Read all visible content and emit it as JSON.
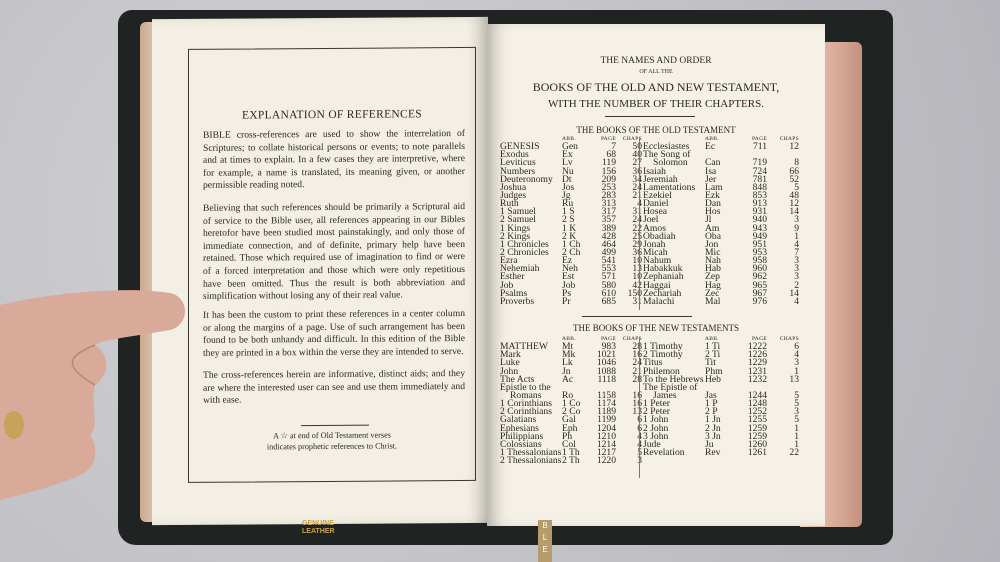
{
  "left_page": {
    "title": "EXPLANATION OF REFERENCES",
    "paragraphs": [
      "BIBLE cross-references are used to show the interrelation of Scriptures; to collate historical persons or events; to note parallels and at times to explain. In a few cases they are interpretive, where for example, a name is translated, its meaning given, or another permissible reading noted.",
      "Believing that such references should be primarily a Scriptural aid of service to the Bible user, all references appearing in our Bibles heretofor have been studied most painstakingly, and only those of immediate connection, and of definite, primary help have been retained. Those which required use of imagination to find or were of a forced interpretation and those which were only repetitious have been omitted. Thus the result is both abbreviation and simplification without losing any of their real value.",
      "It has been the custom to print these references in a center column or along the margins of a page. Use of such arrangement has been found to be both unhandy and difficult. In this edition of the Bible they are printed in a box within the verse they are intended to serve.",
      "The cross-references herein are informative, distinct aids; and they are where the interested user can see and use them immediately and with ease."
    ],
    "footnote": [
      "A ☆ at end of Old Testament verses",
      "indicates prophetic references to Christ."
    ]
  },
  "right_page": {
    "title_line1": "THE NAMES AND ORDER",
    "title_line2": "OF ALL THE",
    "title_line3": "BOOKS OF THE OLD AND NEW TESTAMENT,",
    "title_line4": "WITH THE NUMBER OF THEIR CHAPTERS.",
    "headers": {
      "abb": "ABB.",
      "page": "PAGE",
      "chaps": "CHAPS"
    },
    "old_testament": {
      "heading": "THE BOOKS OF THE OLD TESTAMENT",
      "left": [
        [
          "GENESIS",
          "Gen",
          "7",
          "50"
        ],
        [
          "Exodus",
          "Ex",
          "68",
          "40"
        ],
        [
          "Leviticus",
          "Lv",
          "119",
          "27"
        ],
        [
          "Numbers",
          "Nu",
          "156",
          "36"
        ],
        [
          "Deuteronomy",
          "Dt",
          "209",
          "34"
        ],
        [
          "Joshua",
          "Jos",
          "253",
          "24"
        ],
        [
          "Judges",
          "Jg",
          "283",
          "21"
        ],
        [
          "Ruth",
          "Ru",
          "313",
          "4"
        ],
        [
          "1 Samuel",
          "1 S",
          "317",
          "31"
        ],
        [
          "2 Samuel",
          "2 S",
          "357",
          "24"
        ],
        [
          "1 Kings",
          "1 K",
          "389",
          "22"
        ],
        [
          "2 Kings",
          "2 K",
          "428",
          "25"
        ],
        [
          "1 Chronicles",
          "1 Ch",
          "464",
          "29"
        ],
        [
          "2 Chronicles",
          "2 Ch",
          "499",
          "36"
        ],
        [
          "Ezra",
          "Ez",
          "541",
          "10"
        ],
        [
          "Nehemiah",
          "Neh",
          "553",
          "13"
        ],
        [
          "Esther",
          "Est",
          "571",
          "10"
        ],
        [
          "Job",
          "Job",
          "580",
          "42"
        ],
        [
          "Psalms",
          "Ps",
          "610",
          "150"
        ],
        [
          "Proverbs",
          "Pr",
          "685",
          "31"
        ]
      ],
      "right": [
        [
          "Ecclesiastes",
          "Ec",
          "711",
          "12"
        ],
        [
          "The Song of",
          "",
          "",
          ""
        ],
        [
          "Solomon",
          "Can",
          "719",
          "8"
        ],
        [
          "Isaiah",
          "Isa",
          "724",
          "66"
        ],
        [
          "Jeremiah",
          "Jer",
          "781",
          "52"
        ],
        [
          "Lamentations",
          "Lam",
          "848",
          "5"
        ],
        [
          "Ezekiel",
          "Ezk",
          "853",
          "48"
        ],
        [
          "Daniel",
          "Dan",
          "913",
          "12"
        ],
        [
          "Hosea",
          "Hos",
          "931",
          "14"
        ],
        [
          "Joel",
          "Jl",
          "940",
          "3"
        ],
        [
          "Amos",
          "Am",
          "943",
          "9"
        ],
        [
          "Obadiah",
          "Oba",
          "949",
          "1"
        ],
        [
          "Jonah",
          "Jon",
          "951",
          "4"
        ],
        [
          "Micah",
          "Mic",
          "953",
          "7"
        ],
        [
          "Nahum",
          "Nah",
          "958",
          "3"
        ],
        [
          "Habakkuk",
          "Hab",
          "960",
          "3"
        ],
        [
          "Zephaniah",
          "Zep",
          "962",
          "3"
        ],
        [
          "Haggai",
          "Hag",
          "965",
          "2"
        ],
        [
          "Zechariah",
          "Zec",
          "967",
          "14"
        ],
        [
          "Malachi",
          "Mal",
          "976",
          "4"
        ]
      ]
    },
    "new_testament": {
      "heading": "THE BOOKS OF THE NEW TESTAMENTS",
      "left": [
        [
          "MATTHEW",
          "Mt",
          "983",
          "28"
        ],
        [
          "Mark",
          "Mk",
          "1021",
          "16"
        ],
        [
          "Luke",
          "Lk",
          "1046",
          "24"
        ],
        [
          "John",
          "Jn",
          "1088",
          "21"
        ],
        [
          "The Acts",
          "Ac",
          "1118",
          "28"
        ],
        [
          "Epistle to the",
          "",
          "",
          ""
        ],
        [
          "Romans",
          "Ro",
          "1158",
          "16"
        ],
        [
          "1 Corinthians",
          "1 Co",
          "1174",
          "16"
        ],
        [
          "2 Corinthians",
          "2 Co",
          "1189",
          "13"
        ],
        [
          "Galatians",
          "Gal",
          "1199",
          "6"
        ],
        [
          "Ephesians",
          "Eph",
          "1204",
          "6"
        ],
        [
          "Philippians",
          "Ph",
          "1210",
          "4"
        ],
        [
          "Colossians",
          "Col",
          "1214",
          "4"
        ],
        [
          "1 Thessalonians",
          "1 Th",
          "1217",
          "5"
        ],
        [
          "2 Thessalonians",
          "2 Th",
          "1220",
          "3"
        ]
      ],
      "right": [
        [
          "1 Timothy",
          "1 Ti",
          "1222",
          "6"
        ],
        [
          "2 Timothy",
          "2 Ti",
          "1226",
          "4"
        ],
        [
          "Titus",
          "Tit",
          "1229",
          "3"
        ],
        [
          "Philemon",
          "Phm",
          "1231",
          "1"
        ],
        [
          "To the Hebrews",
          "Heb",
          "1232",
          "13"
        ],
        [
          "The Epistle of",
          "",
          "",
          ""
        ],
        [
          "James",
          "Jas",
          "1244",
          "5"
        ],
        [
          "1 Peter",
          "1 P",
          "1248",
          "5"
        ],
        [
          "2 Peter",
          "2 P",
          "1252",
          "3"
        ],
        [
          "1 John",
          "1 Jn",
          "1255",
          "5"
        ],
        [
          "2 John",
          "2 Jn",
          "1259",
          "1"
        ],
        [
          "3 John",
          "3 Jn",
          "1259",
          "1"
        ],
        [
          "Jude",
          "Ju",
          "1260",
          "1"
        ],
        [
          "Revelation",
          "Rev",
          "1261",
          "22"
        ]
      ]
    }
  },
  "cover_stamp": [
    "GENUINE",
    "LEATHER"
  ],
  "ribbon_letters": [
    "B",
    "L",
    "E"
  ]
}
